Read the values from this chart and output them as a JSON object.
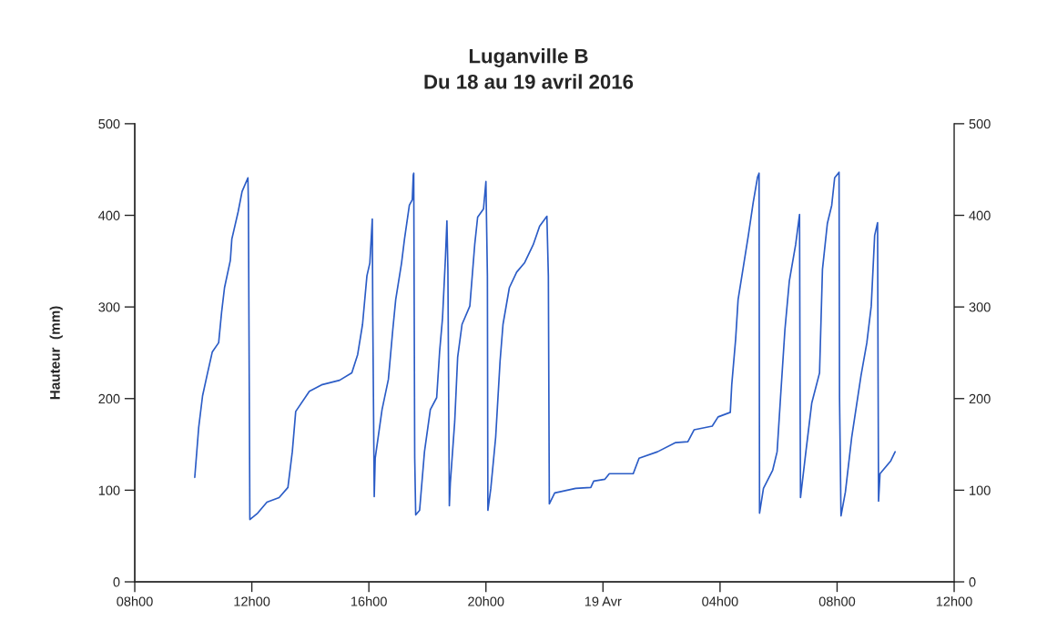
{
  "chart_data": {
    "type": "line",
    "title": "Luganville B",
    "subtitle": "Du 18 au 19 avril 2016",
    "ylabel": "Hauteur  (mm)",
    "xlim": [
      "2016-04-18T08:00",
      "2016-04-19T12:00"
    ],
    "xticks": [
      {
        "value": "2016-04-18T08:00",
        "label": "08h00"
      },
      {
        "value": "2016-04-18T12:00",
        "label": "12h00"
      },
      {
        "value": "2016-04-18T16:00",
        "label": "16h00"
      },
      {
        "value": "2016-04-18T20:00",
        "label": "20h00"
      },
      {
        "value": "2016-04-19T00:00",
        "label": "19 Avr"
      },
      {
        "value": "2016-04-19T04:00",
        "label": "04h00"
      },
      {
        "value": "2016-04-19T08:00",
        "label": "08h00"
      },
      {
        "value": "2016-04-19T12:00",
        "label": "12h00"
      }
    ],
    "ylim": [
      0,
      500
    ],
    "yticks": [
      0,
      100,
      200,
      300,
      400,
      500
    ],
    "y2lim": [
      0,
      500
    ],
    "y2ticks": [
      0,
      100,
      200,
      300,
      400,
      500
    ],
    "grid": false,
    "legend": false,
    "line_style": "solid",
    "marker": "none",
    "series": [
      {
        "color": "#2b5cc6",
        "x": [
          "2016-04-18T10:03",
          "2016-04-18T10:11",
          "2016-04-18T10:19",
          "2016-04-18T10:28",
          "2016-04-18T10:39",
          "2016-04-18T10:52",
          "2016-04-18T10:58",
          "2016-04-18T11:04",
          "2016-04-18T11:16",
          "2016-04-18T11:19",
          "2016-04-18T11:32",
          "2016-04-18T11:40",
          "2016-04-18T11:52",
          "2016-04-18T11:53",
          "2016-04-18T11:56",
          "2016-04-18T12:12",
          "2016-04-18T12:31",
          "2016-04-18T12:56",
          "2016-04-18T13:14",
          "2016-04-18T13:23",
          "2016-04-18T13:30",
          "2016-04-18T13:58",
          "2016-04-18T14:23",
          "2016-04-18T15:00",
          "2016-04-18T15:25",
          "2016-04-18T15:37",
          "2016-04-18T15:47",
          "2016-04-18T15:56",
          "2016-04-18T16:02",
          "2016-04-18T16:07",
          "2016-04-18T16:08",
          "2016-04-18T16:11",
          "2016-04-18T16:13",
          "2016-04-18T16:27",
          "2016-04-18T16:40",
          "2016-04-18T16:49",
          "2016-04-18T16:55",
          "2016-04-18T17:07",
          "2016-04-18T17:13",
          "2016-04-18T17:23",
          "2016-04-18T17:29",
          "2016-04-18T17:31",
          "2016-04-18T17:32",
          "2016-04-18T17:34",
          "2016-04-18T17:36",
          "2016-04-18T17:44",
          "2016-04-18T17:54",
          "2016-04-18T18:06",
          "2016-04-18T18:19",
          "2016-04-18T18:25",
          "2016-04-18T18:31",
          "2016-04-18T18:37",
          "2016-04-18T18:40",
          "2016-04-18T18:42",
          "2016-04-18T18:45",
          "2016-04-18T18:47",
          "2016-04-18T18:56",
          "2016-04-18T19:02",
          "2016-04-18T19:11",
          "2016-04-18T19:27",
          "2016-04-18T19:37",
          "2016-04-18T19:43",
          "2016-04-18T19:55",
          "2016-04-18T20:00",
          "2016-04-18T20:03",
          "2016-04-18T20:04",
          "2016-04-18T20:10",
          "2016-04-18T20:20",
          "2016-04-18T20:29",
          "2016-04-18T20:35",
          "2016-04-18T20:48",
          "2016-04-18T21:03",
          "2016-04-18T21:19",
          "2016-04-18T21:37",
          "2016-04-18T21:50",
          "2016-04-18T22:05",
          "2016-04-18T22:08",
          "2016-04-18T22:10",
          "2016-04-18T22:21",
          "2016-04-18T23:04",
          "2016-04-18T23:35",
          "2016-04-18T23:41",
          "2016-04-19T00:04",
          "2016-04-19T00:13",
          "2016-04-19T01:02",
          "2016-04-19T01:14",
          "2016-04-19T01:52",
          "2016-04-19T02:29",
          "2016-04-19T02:54",
          "2016-04-19T03:07",
          "2016-04-19T03:44",
          "2016-04-19T03:56",
          "2016-04-19T04:21",
          "2016-04-19T04:24",
          "2016-04-19T04:32",
          "2016-04-19T04:37",
          "2016-04-19T04:49",
          "2016-04-19T04:58",
          "2016-04-19T05:08",
          "2016-04-19T05:17",
          "2016-04-19T05:20",
          "2016-04-19T05:21",
          "2016-04-19T05:29",
          "2016-04-19T05:48",
          "2016-04-19T05:57",
          "2016-04-19T06:04",
          "2016-04-19T06:13",
          "2016-04-19T06:22",
          "2016-04-19T06:35",
          "2016-04-19T06:43",
          "2016-04-19T06:44",
          "2016-04-19T06:45",
          "2016-04-19T06:56",
          "2016-04-19T07:08",
          "2016-04-19T07:24",
          "2016-04-19T07:30",
          "2016-04-19T07:40",
          "2016-04-19T07:49",
          "2016-04-19T07:55",
          "2016-04-19T08:04",
          "2016-04-19T08:05",
          "2016-04-19T08:08",
          "2016-04-19T08:17",
          "2016-04-19T08:30",
          "2016-04-19T08:49",
          "2016-04-19T09:01",
          "2016-04-19T09:10",
          "2016-04-19T09:17",
          "2016-04-19T09:23",
          "2016-04-19T09:24",
          "2016-04-19T09:25",
          "2016-04-19T09:28",
          "2016-04-19T09:50",
          "2016-04-19T09:59"
        ],
        "values": [
          114,
          168,
          203,
          225,
          251,
          261,
          294,
          321,
          351,
          374,
          404,
          426,
          441,
          412,
          68,
          75,
          87,
          92,
          103,
          142,
          186,
          208,
          215,
          220,
          228,
          248,
          281,
          334,
          348,
          396,
          291,
          93,
          135,
          188,
          221,
          275,
          308,
          348,
          374,
          411,
          417,
          444,
          446,
          135,
          73,
          78,
          142,
          188,
          201,
          251,
          288,
          354,
          394,
          341,
          83,
          108,
          175,
          245,
          281,
          301,
          368,
          398,
          407,
          437,
          334,
          78,
          102,
          158,
          241,
          281,
          321,
          338,
          348,
          368,
          388,
          399,
          334,
          85,
          97,
          102,
          103,
          110,
          112,
          118,
          118,
          135,
          142,
          152,
          153,
          166,
          170,
          180,
          185,
          215,
          265,
          308,
          348,
          378,
          414,
          442,
          446,
          75,
          102,
          122,
          142,
          201,
          275,
          328,
          368,
          401,
          218,
          92,
          142,
          195,
          228,
          341,
          391,
          411,
          441,
          447,
          201,
          72,
          98,
          158,
          225,
          261,
          301,
          378,
          392,
          228,
          88,
          118,
          132,
          142
        ]
      }
    ]
  }
}
